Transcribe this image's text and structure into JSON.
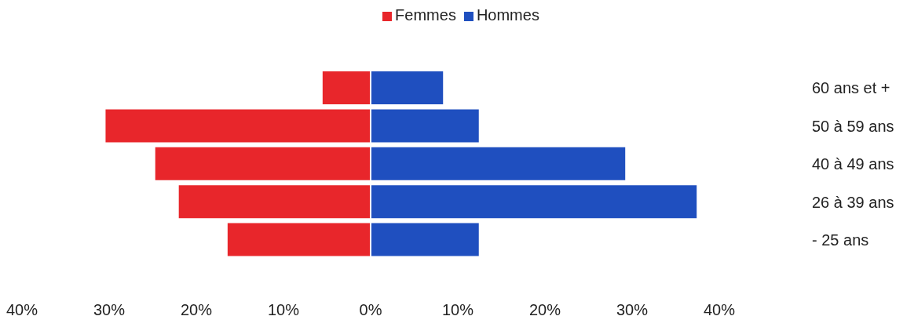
{
  "chart_data": {
    "type": "bar",
    "orientation": "horizontal",
    "stacked": true,
    "categories": [
      "60 ans et +",
      "50 à 59 ans",
      "40 à 49 ans",
      "26 à 39 ans",
      "- 25 ans"
    ],
    "series": [
      {
        "name": "Femmes",
        "color": "#e8262b",
        "values": [
          -5.6,
          -30.5,
          -24.8,
          -22.1,
          -16.5
        ]
      },
      {
        "name": "Hommes",
        "color": "#1f4fbf",
        "values": [
          8.4,
          12.5,
          29.3,
          37.5,
          12.5
        ]
      }
    ],
    "xlim": [
      -40,
      40
    ],
    "xticks": [
      {
        "value": -40,
        "label": "40%"
      },
      {
        "value": -30,
        "label": "30%"
      },
      {
        "value": -20,
        "label": "20%"
      },
      {
        "value": -10,
        "label": "10%"
      },
      {
        "value": 0,
        "label": "0%"
      },
      {
        "value": 10,
        "label": "10%"
      },
      {
        "value": 20,
        "label": "20%"
      },
      {
        "value": 30,
        "label": "30%"
      },
      {
        "value": 40,
        "label": "40%"
      }
    ],
    "grid": false,
    "legend": "top"
  }
}
